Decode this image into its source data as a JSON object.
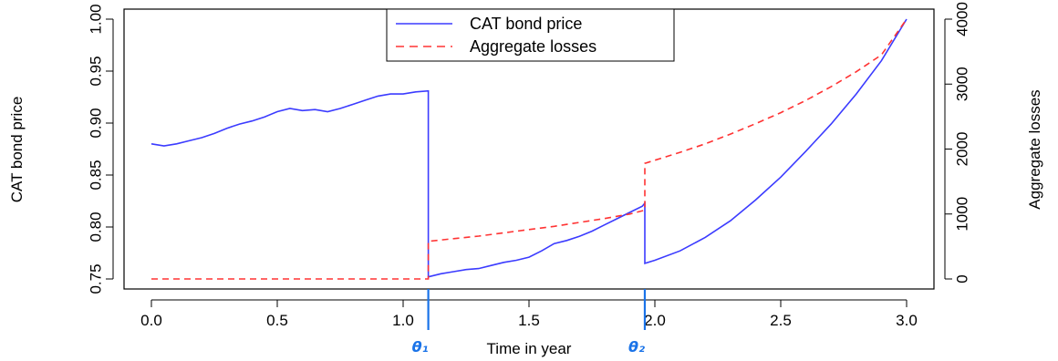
{
  "chart_data": {
    "type": "line",
    "xlabel": "Time in year",
    "ylabel": "CAT bond price",
    "y2label": "Aggregate losses",
    "xlim": [
      0,
      3
    ],
    "ylim": [
      0.75,
      1.0
    ],
    "y2lim": [
      0,
      4000
    ],
    "x_ticks": [
      "0.0",
      "0.5",
      "1.0",
      "1.5",
      "2.0",
      "2.5",
      "3.0"
    ],
    "y_ticks": [
      "0.75",
      "0.80",
      "0.85",
      "0.90",
      "0.95",
      "1.00"
    ],
    "y2_ticks": [
      "0",
      "1000",
      "2000",
      "3000",
      "4000"
    ],
    "grid": false,
    "legend_position": "top-center",
    "series": [
      {
        "name": "CAT bond price",
        "axis": "left",
        "color": "#3b3bff",
        "style": "solid",
        "points": [
          [
            0.0,
            0.88
          ],
          [
            0.05,
            0.878
          ],
          [
            0.1,
            0.88
          ],
          [
            0.15,
            0.883
          ],
          [
            0.2,
            0.886
          ],
          [
            0.25,
            0.89
          ],
          [
            0.3,
            0.895
          ],
          [
            0.35,
            0.899
          ],
          [
            0.4,
            0.902
          ],
          [
            0.45,
            0.906
          ],
          [
            0.5,
            0.911
          ],
          [
            0.55,
            0.914
          ],
          [
            0.6,
            0.912
          ],
          [
            0.65,
            0.913
          ],
          [
            0.7,
            0.911
          ],
          [
            0.75,
            0.914
          ],
          [
            0.8,
            0.918
          ],
          [
            0.85,
            0.922
          ],
          [
            0.9,
            0.926
          ],
          [
            0.95,
            0.928
          ],
          [
            1.0,
            0.928
          ],
          [
            1.05,
            0.93
          ],
          [
            1.1,
            0.931
          ],
          [
            1.1,
            0.752
          ],
          [
            1.15,
            0.755
          ],
          [
            1.2,
            0.757
          ],
          [
            1.25,
            0.759
          ],
          [
            1.3,
            0.76
          ],
          [
            1.35,
            0.763
          ],
          [
            1.4,
            0.766
          ],
          [
            1.45,
            0.768
          ],
          [
            1.5,
            0.771
          ],
          [
            1.55,
            0.777
          ],
          [
            1.6,
            0.784
          ],
          [
            1.65,
            0.787
          ],
          [
            1.7,
            0.791
          ],
          [
            1.75,
            0.796
          ],
          [
            1.8,
            0.802
          ],
          [
            1.85,
            0.808
          ],
          [
            1.9,
            0.814
          ],
          [
            1.95,
            0.82
          ],
          [
            1.96,
            0.823
          ],
          [
            1.96,
            0.765
          ],
          [
            2.0,
            0.768
          ],
          [
            2.1,
            0.777
          ],
          [
            2.2,
            0.79
          ],
          [
            2.3,
            0.806
          ],
          [
            2.4,
            0.826
          ],
          [
            2.5,
            0.848
          ],
          [
            2.6,
            0.873
          ],
          [
            2.7,
            0.899
          ],
          [
            2.8,
            0.928
          ],
          [
            2.9,
            0.96
          ],
          [
            3.0,
            1.0
          ]
        ]
      },
      {
        "name": "Aggregate losses",
        "axis": "right",
        "color": "#ff3333",
        "style": "dashed",
        "points": [
          [
            0.0,
            0
          ],
          [
            1.1,
            0
          ],
          [
            1.1,
            580
          ],
          [
            1.2,
            620
          ],
          [
            1.3,
            660
          ],
          [
            1.4,
            710
          ],
          [
            1.5,
            760
          ],
          [
            1.6,
            810
          ],
          [
            1.7,
            870
          ],
          [
            1.8,
            930
          ],
          [
            1.9,
            1000
          ],
          [
            1.96,
            1060
          ],
          [
            1.96,
            1780
          ],
          [
            2.1,
            1950
          ],
          [
            2.2,
            2080
          ],
          [
            2.3,
            2230
          ],
          [
            2.4,
            2390
          ],
          [
            2.5,
            2560
          ],
          [
            2.6,
            2750
          ],
          [
            2.7,
            2960
          ],
          [
            2.8,
            3190
          ],
          [
            2.9,
            3450
          ],
          [
            3.0,
            4000
          ]
        ]
      }
    ],
    "annotations": [
      {
        "label": "θ₁",
        "x": 1.1,
        "color": "#1a73e8"
      },
      {
        "label": "θ₂",
        "x": 1.96,
        "color": "#1a73e8"
      }
    ]
  }
}
